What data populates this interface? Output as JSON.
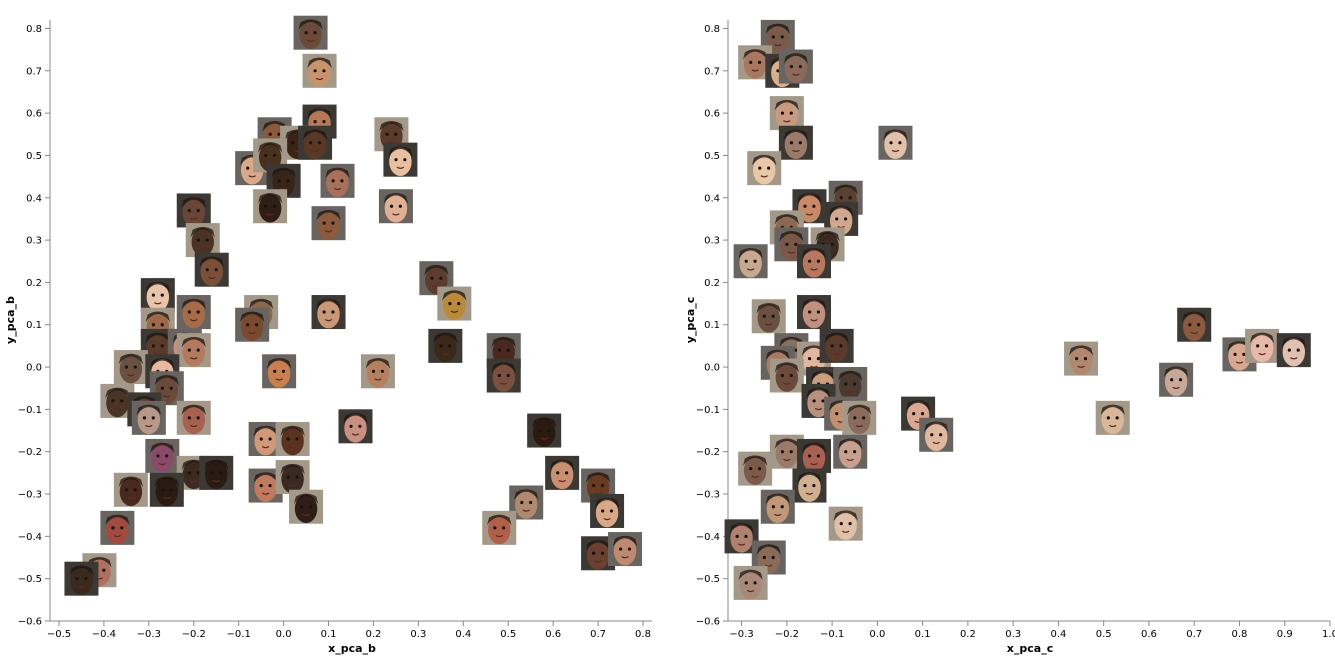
{
  "chart_data": [
    {
      "type": "scatter",
      "marker": "face-thumbnail",
      "title": "",
      "xlabel": "x_pca_b",
      "ylabel": "y_pca_b",
      "xlim": [
        -0.52,
        0.82
      ],
      "ylim": [
        -0.6,
        0.82
      ],
      "xticks": [
        -0.5,
        -0.4,
        -0.3,
        -0.2,
        -0.1,
        0.0,
        0.1,
        0.2,
        0.3,
        0.4,
        0.5,
        0.6,
        0.7,
        0.8
      ],
      "xtick_labels": [
        "−0.5",
        "−0.4",
        "−0.3",
        "−0.2",
        "−0.1",
        "0.0",
        "0.1",
        "0.2",
        "0.3",
        "0.4",
        "0.5",
        "0.6",
        "0.7",
        "0.8"
      ],
      "yticks": [
        -0.6,
        -0.5,
        -0.4,
        -0.3,
        -0.2,
        -0.1,
        0.0,
        0.1,
        0.2,
        0.3,
        0.4,
        0.5,
        0.6,
        0.7,
        0.8
      ],
      "ytick_labels": [
        "−0.6",
        "−0.5",
        "−0.4",
        "−0.3",
        "−0.2",
        "−0.1",
        "0.0",
        "0.1",
        "0.2",
        "0.3",
        "0.4",
        "0.5",
        "0.6",
        "0.7",
        "0.8"
      ],
      "points": [
        {
          "x": 0.06,
          "y": 0.79,
          "tone": "#6b4a3a"
        },
        {
          "x": 0.08,
          "y": 0.7,
          "tone": "#c9946c"
        },
        {
          "x": 0.08,
          "y": 0.58,
          "tone": "#b57a55"
        },
        {
          "x": -0.02,
          "y": 0.55,
          "tone": "#8a5a3c"
        },
        {
          "x": 0.03,
          "y": 0.53,
          "tone": "#3a2416"
        },
        {
          "x": 0.07,
          "y": 0.53,
          "tone": "#5a3826"
        },
        {
          "x": -0.07,
          "y": 0.47,
          "tone": "#d8a98a"
        },
        {
          "x": -0.03,
          "y": 0.5,
          "tone": "#4a2e1e"
        },
        {
          "x": 0.0,
          "y": 0.44,
          "tone": "#3a241a"
        },
        {
          "x": 0.12,
          "y": 0.44,
          "tone": "#a8705a"
        },
        {
          "x": 0.24,
          "y": 0.55,
          "tone": "#5a3a28"
        },
        {
          "x": 0.26,
          "y": 0.49,
          "tone": "#e8c0a0"
        },
        {
          "x": 0.25,
          "y": 0.38,
          "tone": "#e0b094"
        },
        {
          "x": -0.03,
          "y": 0.38,
          "tone": "#2e1e16"
        },
        {
          "x": -0.2,
          "y": 0.37,
          "tone": "#6a4636"
        },
        {
          "x": 0.1,
          "y": 0.34,
          "tone": "#8c5a3e"
        },
        {
          "x": -0.18,
          "y": 0.3,
          "tone": "#4a3224"
        },
        {
          "x": -0.16,
          "y": 0.23,
          "tone": "#7a5038"
        },
        {
          "x": 0.34,
          "y": 0.21,
          "tone": "#5c3c2c"
        },
        {
          "x": 0.38,
          "y": 0.15,
          "tone": "#b88a3a"
        },
        {
          "x": -0.28,
          "y": 0.17,
          "tone": "#e8c4a8"
        },
        {
          "x": -0.2,
          "y": 0.13,
          "tone": "#a66c48"
        },
        {
          "x": -0.05,
          "y": 0.13,
          "tone": "#8a6a4a"
        },
        {
          "x": 0.1,
          "y": 0.13,
          "tone": "#c89878"
        },
        {
          "x": -0.07,
          "y": 0.1,
          "tone": "#7a4a30"
        },
        {
          "x": -0.28,
          "y": 0.1,
          "tone": "#9a6a4a"
        },
        {
          "x": -0.28,
          "y": 0.05,
          "tone": "#5a3a2a"
        },
        {
          "x": -0.22,
          "y": 0.05,
          "tone": "#d09078"
        },
        {
          "x": -0.2,
          "y": 0.04,
          "tone": "#b47a5e"
        },
        {
          "x": 0.36,
          "y": 0.05,
          "tone": "#3a2818"
        },
        {
          "x": 0.49,
          "y": 0.04,
          "tone": "#4a2a20"
        },
        {
          "x": -0.34,
          "y": 0.0,
          "tone": "#6a5040"
        },
        {
          "x": -0.27,
          "y": -0.01,
          "tone": "#e8b8a0"
        },
        {
          "x": -0.01,
          "y": -0.01,
          "tone": "#c88050"
        },
        {
          "x": 0.21,
          "y": -0.01,
          "tone": "#b48060"
        },
        {
          "x": 0.49,
          "y": -0.02,
          "tone": "#7a5040"
        },
        {
          "x": -0.26,
          "y": -0.05,
          "tone": "#6a4a3a"
        },
        {
          "x": -0.37,
          "y": -0.08,
          "tone": "#4a3426"
        },
        {
          "x": -0.31,
          "y": -0.1,
          "tone": "#5a4034"
        },
        {
          "x": -0.3,
          "y": -0.12,
          "tone": "#b89888"
        },
        {
          "x": -0.2,
          "y": -0.12,
          "tone": "#a86050"
        },
        {
          "x": 0.16,
          "y": -0.14,
          "tone": "#c89080"
        },
        {
          "x": -0.04,
          "y": -0.17,
          "tone": "#d09a78"
        },
        {
          "x": 0.02,
          "y": -0.17,
          "tone": "#5a3222"
        },
        {
          "x": 0.58,
          "y": -0.15,
          "tone": "#2a1a10"
        },
        {
          "x": -0.27,
          "y": -0.21,
          "tone": "#8a4a6a"
        },
        {
          "x": -0.2,
          "y": -0.25,
          "tone": "#3a2a20"
        },
        {
          "x": -0.15,
          "y": -0.25,
          "tone": "#2a1a12"
        },
        {
          "x": -0.04,
          "y": -0.28,
          "tone": "#c07a60"
        },
        {
          "x": 0.02,
          "y": -0.26,
          "tone": "#3a2a22"
        },
        {
          "x": 0.62,
          "y": -0.25,
          "tone": "#c89070"
        },
        {
          "x": 0.7,
          "y": -0.28,
          "tone": "#6a3a22"
        },
        {
          "x": -0.34,
          "y": -0.29,
          "tone": "#4a2a1e"
        },
        {
          "x": -0.26,
          "y": -0.29,
          "tone": "#2a1a12"
        },
        {
          "x": 0.54,
          "y": -0.32,
          "tone": "#b08a70"
        },
        {
          "x": 0.05,
          "y": -0.33,
          "tone": "#2e1e16"
        },
        {
          "x": 0.72,
          "y": -0.34,
          "tone": "#d8a888"
        },
        {
          "x": -0.37,
          "y": -0.38,
          "tone": "#a04a40"
        },
        {
          "x": 0.48,
          "y": -0.38,
          "tone": "#b06048"
        },
        {
          "x": 0.7,
          "y": -0.44,
          "tone": "#6a4030"
        },
        {
          "x": 0.76,
          "y": -0.43,
          "tone": "#c08a70"
        },
        {
          "x": -0.41,
          "y": -0.48,
          "tone": "#b07060"
        },
        {
          "x": -0.45,
          "y": -0.5,
          "tone": "#3a2a1e"
        }
      ]
    },
    {
      "type": "scatter",
      "marker": "face-thumbnail",
      "title": "",
      "xlabel": "x_pca_c",
      "ylabel": "y_pca_c",
      "xlim": [
        -0.33,
        1.0
      ],
      "ylim": [
        -0.6,
        0.82
      ],
      "xticks": [
        -0.3,
        -0.2,
        -0.1,
        0.0,
        0.1,
        0.2,
        0.3,
        0.4,
        0.5,
        0.6,
        0.7,
        0.8,
        0.9,
        1.0
      ],
      "xtick_labels": [
        "−0.3",
        "−0.2",
        "−0.1",
        "0.0",
        "0.1",
        "0.2",
        "0.3",
        "0.4",
        "0.5",
        "0.6",
        "0.7",
        "0.8",
        "0.9",
        "1.0"
      ],
      "yticks": [
        -0.6,
        -0.5,
        -0.4,
        -0.3,
        -0.2,
        -0.1,
        0.0,
        0.1,
        0.2,
        0.3,
        0.4,
        0.5,
        0.6,
        0.7,
        0.8
      ],
      "ytick_labels": [
        "−0.6",
        "−0.5",
        "−0.4",
        "−0.3",
        "−0.2",
        "−0.1",
        "0.0",
        "0.1",
        "0.2",
        "0.3",
        "0.4",
        "0.5",
        "0.6",
        "0.7",
        "0.8"
      ],
      "points": [
        {
          "x": -0.22,
          "y": 0.78,
          "tone": "#7a5a48"
        },
        {
          "x": -0.27,
          "y": 0.72,
          "tone": "#a87860"
        },
        {
          "x": -0.21,
          "y": 0.7,
          "tone": "#d8b090"
        },
        {
          "x": -0.18,
          "y": 0.71,
          "tone": "#8a6a5a"
        },
        {
          "x": -0.2,
          "y": 0.6,
          "tone": "#c89a80"
        },
        {
          "x": -0.18,
          "y": 0.53,
          "tone": "#9a7a6a"
        },
        {
          "x": 0.04,
          "y": 0.53,
          "tone": "#e0c0a8"
        },
        {
          "x": -0.25,
          "y": 0.47,
          "tone": "#e8c8a8"
        },
        {
          "x": -0.15,
          "y": 0.38,
          "tone": "#c88a68"
        },
        {
          "x": -0.07,
          "y": 0.4,
          "tone": "#5a4030"
        },
        {
          "x": -0.2,
          "y": 0.33,
          "tone": "#8a6a50"
        },
        {
          "x": -0.08,
          "y": 0.35,
          "tone": "#d0a890"
        },
        {
          "x": -0.19,
          "y": 0.29,
          "tone": "#7a5848"
        },
        {
          "x": -0.11,
          "y": 0.29,
          "tone": "#3a2a22"
        },
        {
          "x": -0.14,
          "y": 0.25,
          "tone": "#b87860"
        },
        {
          "x": -0.28,
          "y": 0.25,
          "tone": "#c8a890"
        },
        {
          "x": -0.24,
          "y": 0.12,
          "tone": "#6a5040"
        },
        {
          "x": -0.14,
          "y": 0.13,
          "tone": "#c09080"
        },
        {
          "x": -0.19,
          "y": 0.04,
          "tone": "#8a7060"
        },
        {
          "x": -0.14,
          "y": 0.02,
          "tone": "#e0b8a0"
        },
        {
          "x": -0.09,
          "y": 0.05,
          "tone": "#5a3a2a"
        },
        {
          "x": -0.22,
          "y": 0.01,
          "tone": "#a87a68"
        },
        {
          "x": -0.2,
          "y": -0.02,
          "tone": "#6a4a3a"
        },
        {
          "x": -0.12,
          "y": -0.04,
          "tone": "#c8a080"
        },
        {
          "x": -0.06,
          "y": -0.04,
          "tone": "#4a3a30"
        },
        {
          "x": 0.45,
          "y": 0.02,
          "tone": "#b08870"
        },
        {
          "x": 0.7,
          "y": 0.1,
          "tone": "#8a5a40"
        },
        {
          "x": 0.8,
          "y": 0.03,
          "tone": "#d8a890"
        },
        {
          "x": 0.85,
          "y": 0.05,
          "tone": "#e8b8a8"
        },
        {
          "x": 0.92,
          "y": 0.04,
          "tone": "#e0c0b0"
        },
        {
          "x": 0.66,
          "y": -0.03,
          "tone": "#c8a898"
        },
        {
          "x": 0.52,
          "y": -0.12,
          "tone": "#d8b898"
        },
        {
          "x": -0.13,
          "y": -0.08,
          "tone": "#b89080"
        },
        {
          "x": -0.08,
          "y": -0.11,
          "tone": "#c09070"
        },
        {
          "x": -0.04,
          "y": -0.12,
          "tone": "#8a6a5a"
        },
        {
          "x": 0.09,
          "y": -0.11,
          "tone": "#d8a890"
        },
        {
          "x": 0.13,
          "y": -0.16,
          "tone": "#e0b8a0"
        },
        {
          "x": -0.2,
          "y": -0.2,
          "tone": "#9a7a68"
        },
        {
          "x": -0.14,
          "y": -0.21,
          "tone": "#a86050"
        },
        {
          "x": -0.06,
          "y": -0.2,
          "tone": "#c8a090"
        },
        {
          "x": -0.27,
          "y": -0.24,
          "tone": "#7a5a48"
        },
        {
          "x": -0.15,
          "y": -0.28,
          "tone": "#d0b090"
        },
        {
          "x": -0.22,
          "y": -0.33,
          "tone": "#c09878"
        },
        {
          "x": -0.07,
          "y": -0.37,
          "tone": "#e0c0a8"
        },
        {
          "x": -0.3,
          "y": -0.4,
          "tone": "#b08070"
        },
        {
          "x": -0.24,
          "y": -0.45,
          "tone": "#8a6a58"
        },
        {
          "x": -0.28,
          "y": -0.51,
          "tone": "#a88878"
        }
      ]
    }
  ]
}
